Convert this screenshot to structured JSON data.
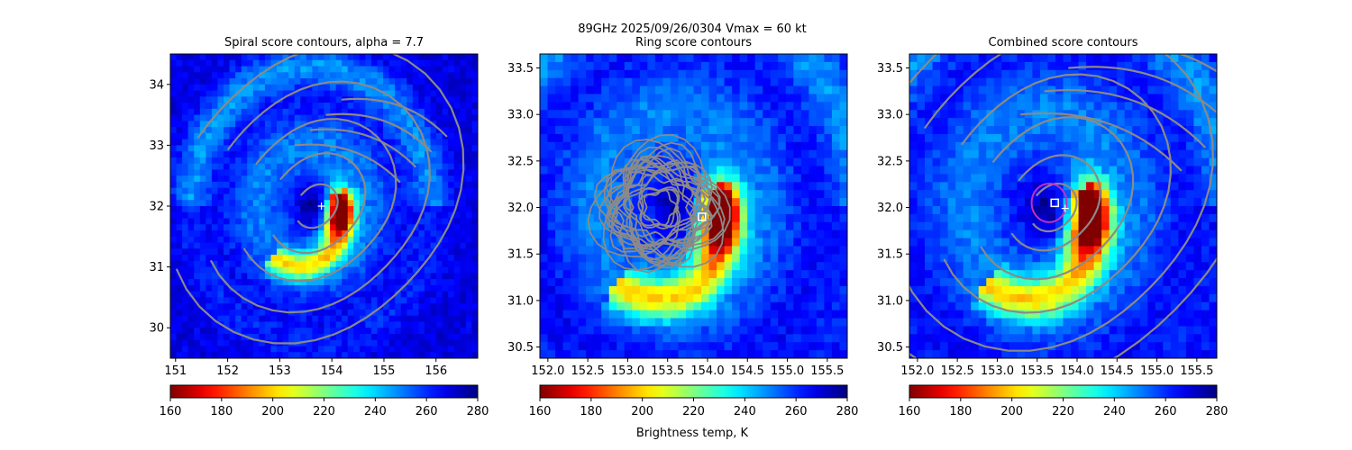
{
  "suptitle_line": "89GHz  2025/09/26/0304    Vmax = 60 kt",
  "colorbar_label": "Brightness temp, K",
  "colors": {
    "background": "#ffffff",
    "contour": "#8a8a8a",
    "highlight_contour": "#c030c0",
    "marker": "#ffffff"
  },
  "colormap": {
    "name": "jet_r",
    "vmin": 160,
    "vmax": 280,
    "ticks": [
      160,
      180,
      200,
      220,
      240,
      260,
      280
    ]
  },
  "chart_data": [
    {
      "type": "heatmap",
      "title": "Spiral score contours, alpha =  7.7",
      "xlim": [
        150.9,
        156.8
      ],
      "ylim": [
        29.5,
        34.5
      ],
      "xticks": [
        151,
        152,
        153,
        154,
        155,
        156
      ],
      "yticks": [
        30,
        31,
        32,
        33,
        34
      ],
      "storm_center": [
        153.6,
        32.0
      ],
      "best_track_marker": "+",
      "best_track": [
        153.8,
        32.0
      ],
      "contour_radii_deg": [
        0.35,
        0.8,
        1.3,
        1.85,
        2.4
      ],
      "contour_levels": 5
    },
    {
      "type": "heatmap",
      "title": "Ring score contours",
      "xlim": [
        151.9,
        155.75
      ],
      "ylim": [
        30.38,
        33.65
      ],
      "xticks": [
        152.0,
        152.5,
        153.0,
        153.5,
        154.0,
        154.5,
        155.0,
        155.5
      ],
      "yticks": [
        30.5,
        31.0,
        31.5,
        32.0,
        32.5,
        33.0,
        33.5
      ],
      "yticks_labels": [
        "30.5",
        "31.0",
        "31.5",
        "32.0",
        "32.5",
        "33.0",
        "33.5"
      ],
      "xticks_labels": [
        "152.0",
        "152.5",
        "153.0",
        "153.5",
        "154.0",
        "154.5",
        "155.0",
        "155.5"
      ],
      "storm_center": [
        153.6,
        32.0
      ],
      "ring_center_marker": "square",
      "ring_center": [
        153.93,
        31.9
      ],
      "ring_region_radius_deg": 0.75
    },
    {
      "type": "heatmap",
      "title": "Combined score contours",
      "xlim": [
        151.9,
        155.75
      ],
      "ylim": [
        30.38,
        33.65
      ],
      "xticks": [
        152.0,
        152.5,
        153.0,
        153.5,
        154.0,
        154.5,
        155.0,
        155.5
      ],
      "yticks": [
        30.5,
        31.0,
        31.5,
        32.0,
        32.5,
        33.0,
        33.5
      ],
      "yticks_labels": [
        "30.5",
        "31.0",
        "31.5",
        "32.0",
        "32.5",
        "33.0",
        "33.5"
      ],
      "xticks_labels": [
        "152.0",
        "152.5",
        "153.0",
        "153.5",
        "154.0",
        "154.5",
        "155.0",
        "155.5"
      ],
      "storm_center": [
        153.6,
        32.0
      ],
      "combined_center_marker": "square",
      "combined_center": [
        153.72,
        32.05
      ],
      "best_track_marker": "+",
      "best_track": [
        153.85,
        31.99
      ],
      "contour_radii_deg": [
        0.25,
        0.5,
        0.85,
        1.25,
        1.7,
        2.15
      ],
      "highlight_radius_deg": 0.22
    }
  ]
}
